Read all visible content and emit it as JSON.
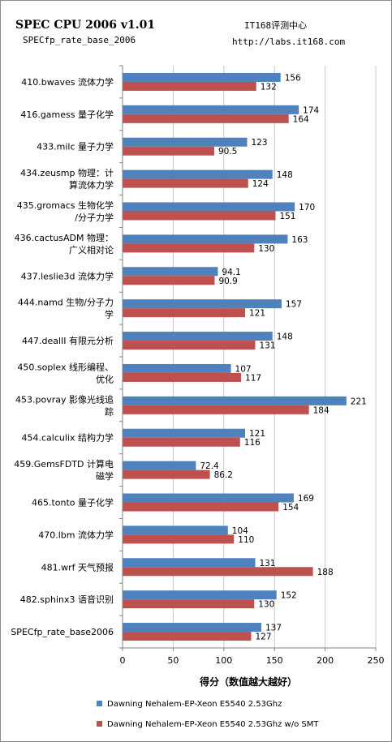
{
  "header": {
    "title": "SPEC CPU 2006 v1.01",
    "subtitle": "SPECfp_rate_base_2006",
    "source_name": "IT168评测中心",
    "source_url": "http://labs.it168.com"
  },
  "chart_data": {
    "type": "bar",
    "orientation": "horizontal",
    "title": "SPEC CPU 2006 v1.01",
    "subtitle": "SPECfp_rate_base_2006",
    "xlabel": "得分（数值越大越好）",
    "ylabel": "",
    "xlim": [
      0,
      250
    ],
    "xticks": [
      0,
      50,
      100,
      150,
      200,
      250
    ],
    "grid": "vertical",
    "legend_position": "bottom",
    "categories": [
      [
        "410.bwaves 流体力学"
      ],
      [
        "416.gamess 量子化学"
      ],
      [
        "433.milc 量子力学"
      ],
      [
        "434.zeusmp 物理：计",
        "算流体力学"
      ],
      [
        "435.gromacs 生物化学",
        "/分子力学"
      ],
      [
        "436.cactusADM 物理：",
        "广义相对论"
      ],
      [
        "437.leslie3d 流体力学"
      ],
      [
        "444.namd 生物/分子力",
        "学"
      ],
      [
        "447.dealII 有限元分析"
      ],
      [
        "450.soplex 线形编程、",
        "优化"
      ],
      [
        "453.povray 影像光线追",
        "踪"
      ],
      [
        "454.calculix 结构力学"
      ],
      [
        "459.GemsFDTD 计算电",
        "磁学"
      ],
      [
        "465.tonto 量子化学"
      ],
      [
        "470.lbm 流体力学"
      ],
      [
        "481.wrf 天气预报"
      ],
      [
        "482.sphinx3 语音识别"
      ],
      [
        "SPECfp_rate_base2006"
      ]
    ],
    "series": [
      {
        "name": "Dawning Nehalem-EP-Xeon  E5540 2.53Ghz",
        "color": "#4f81bd",
        "values": [
          156,
          174,
          123,
          148,
          170,
          163,
          94.1,
          157,
          148,
          107,
          221,
          121,
          72.4,
          169,
          104,
          131,
          152,
          137
        ],
        "labels": [
          "156",
          "174",
          "123",
          "148",
          "170",
          "163",
          "94.1",
          "157",
          "148",
          "107",
          "221",
          "121",
          "72.4",
          "169",
          "104",
          "131",
          "152",
          "137"
        ]
      },
      {
        "name": "Dawning Nehalem-EP-Xeon  E5540 2.53Ghz w/o SMT",
        "color": "#c0504d",
        "values": [
          132,
          164,
          90.5,
          124,
          151,
          130,
          90.9,
          121,
          131,
          117,
          184,
          116,
          86.2,
          154,
          110,
          188,
          130,
          127
        ],
        "labels": [
          "132",
          "164",
          "90.5",
          "124",
          "151",
          "130",
          "90.9",
          "121",
          "131",
          "117",
          "184",
          "116",
          "86.2",
          "154",
          "110",
          "188",
          "130",
          "127"
        ]
      }
    ]
  }
}
